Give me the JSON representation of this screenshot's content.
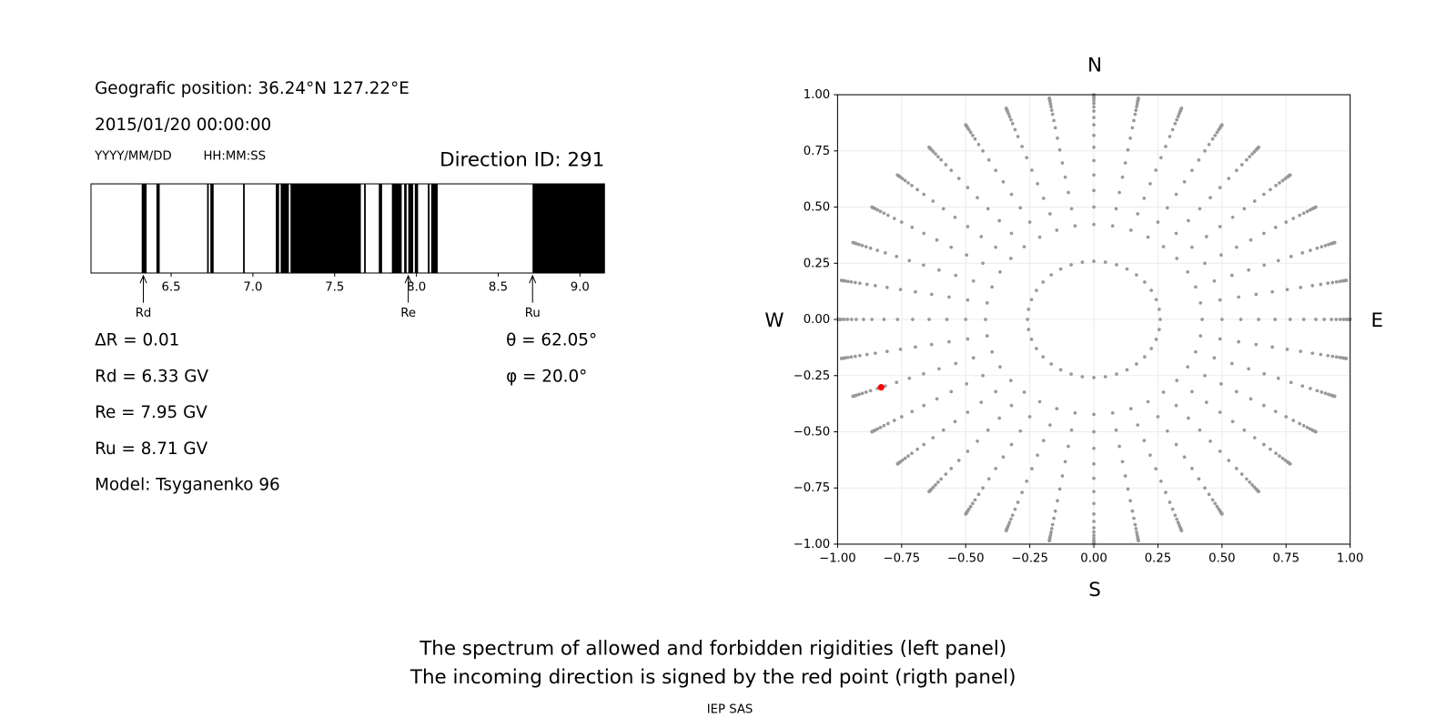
{
  "chart_data": [
    {
      "type": "spectrum",
      "title": "Direction ID: 291",
      "xlim": [
        6.01,
        9.15
      ],
      "xticks": [
        6.5,
        {
          "value": 7,
          "label": "7.0"
        },
        7.5,
        {
          "value": 8,
          "label": "8.0"
        },
        8.5,
        {
          "value": 9,
          "label": "9.0"
        }
      ],
      "color": "#000000",
      "forbidden_bands": [
        [
          6.32,
          6.35
        ],
        [
          6.41,
          6.43
        ],
        [
          6.72,
          6.73
        ],
        [
          6.74,
          6.76
        ],
        [
          6.94,
          6.95
        ],
        [
          7.14,
          7.16
        ],
        [
          7.17,
          7.22
        ],
        [
          7.23,
          7.66
        ],
        [
          7.68,
          7.69
        ],
        [
          7.77,
          7.79
        ],
        [
          7.85,
          7.91
        ],
        [
          7.925,
          7.94
        ],
        [
          7.95,
          7.98
        ],
        [
          7.99,
          8.01
        ],
        [
          8.07,
          8.08
        ],
        [
          8.09,
          8.13
        ],
        [
          8.71,
          9.15
        ]
      ],
      "markers": [
        {
          "label": "Rd",
          "value": 6.33
        },
        {
          "label": "Re",
          "value": 7.95
        },
        {
          "label": "Ru",
          "value": 8.71
        }
      ]
    },
    {
      "type": "direction-map",
      "xlim": [
        -1,
        1
      ],
      "ylim": [
        -1,
        1
      ],
      "xticks": [
        {
          "value": -1,
          "label": "−1.00"
        },
        {
          "value": -0.75,
          "label": "−0.75"
        },
        {
          "value": -0.5,
          "label": "−0.50"
        },
        {
          "value": -0.25,
          "label": "−0.25"
        },
        {
          "value": 0,
          "label": "0.00"
        },
        {
          "value": 0.25,
          "label": "0.25"
        },
        {
          "value": 0.5,
          "label": "0.50"
        },
        {
          "value": 0.75,
          "label": "0.75"
        },
        {
          "value": 1,
          "label": "1.00"
        }
      ],
      "yticks": [
        {
          "value": -1,
          "label": "−1.00"
        },
        {
          "value": -0.75,
          "label": "−0.75"
        },
        {
          "value": -0.5,
          "label": "−0.50"
        },
        {
          "value": -0.25,
          "label": "−0.25"
        },
        {
          "value": 0,
          "label": "0.00"
        },
        {
          "value": 0.25,
          "label": "0.25"
        },
        {
          "value": 0.5,
          "label": "0.50"
        },
        {
          "value": 0.75,
          "label": "0.75"
        },
        {
          "value": 1,
          "label": "1.00"
        }
      ],
      "grid": true,
      "compass": {
        "north": "N",
        "south": "S",
        "west": "W",
        "east": "E"
      },
      "grid_points": {
        "color": "#999999",
        "theta": [
          15,
          25,
          30,
          35,
          40,
          45,
          50,
          55,
          60,
          64,
          68,
          71,
          74,
          77,
          80,
          82,
          84,
          86,
          88,
          90
        ],
        "phi": [
          0,
          10,
          20,
          30,
          40,
          50,
          60,
          70,
          80,
          90,
          100,
          110,
          120,
          130,
          140,
          150,
          160,
          170,
          180,
          190,
          200,
          210,
          220,
          230,
          240,
          250,
          260,
          270,
          280,
          290,
          300,
          310,
          320,
          330,
          340,
          350
        ]
      },
      "highlight": {
        "color": "#ff0000",
        "theta": 62.05,
        "phi": 20.0
      }
    }
  ],
  "info": {
    "position": "Geografic position: 36.24°N 127.22°E",
    "datetime": "2015/01/20 00:00:00",
    "date_format": "YYYY/MM/DD",
    "time_format": "HH:MM:SS",
    "lines": [
      "ΔR = 0.01",
      "Rd = 6.33 GV",
      "Re = 7.95 GV",
      "Ru = 8.71 GV",
      "Model: Tsyganenko 96"
    ],
    "angles": [
      "θ = 62.05°",
      "φ = 20.0°"
    ]
  },
  "caption": [
    "The spectrum of allowed and forbidden rigidities (left panel)",
    "The incoming direction is signed by the red point (rigth panel)"
  ],
  "credit": "IEP SAS"
}
